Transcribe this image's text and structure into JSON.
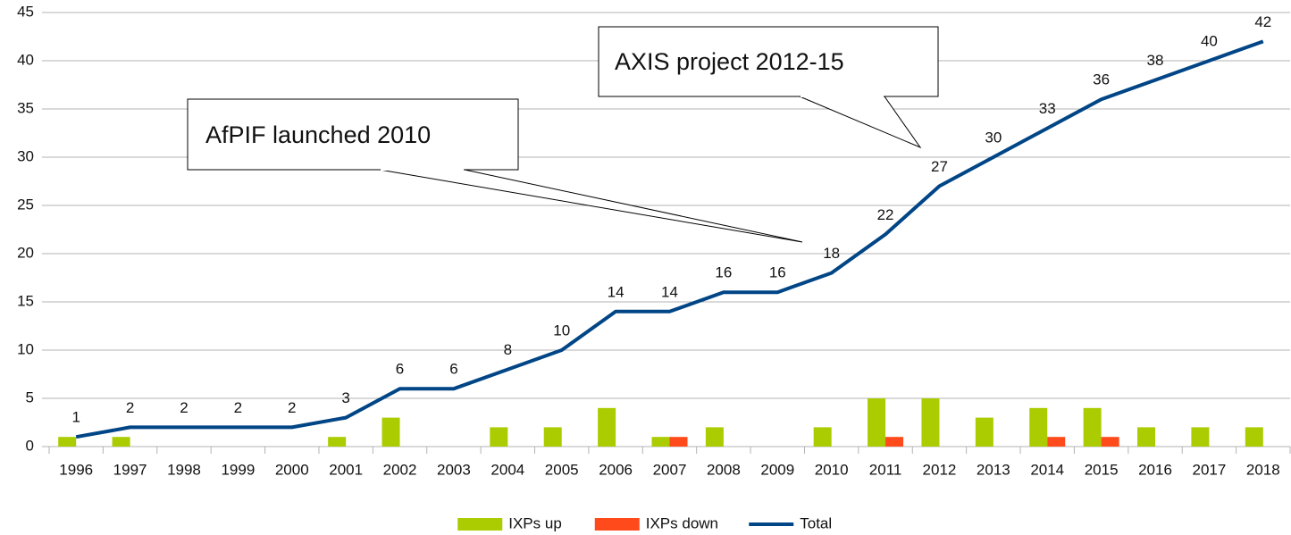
{
  "chart_data": {
    "type": "bar-line",
    "categories": [
      "1996",
      "1997",
      "1998",
      "1999",
      "2000",
      "2001",
      "2002",
      "2003",
      "2004",
      "2005",
      "2006",
      "2007",
      "2008",
      "2009",
      "2010",
      "2011",
      "2012",
      "2013",
      "2014",
      "2015",
      "2016",
      "2017",
      "2018"
    ],
    "series": [
      {
        "name": "IXPs up",
        "color": "#aacc00",
        "type": "bar",
        "values": [
          1,
          1,
          0,
          0,
          0,
          1,
          3,
          0,
          2,
          2,
          4,
          1,
          2,
          0,
          2,
          5,
          5,
          3,
          4,
          4,
          2,
          2,
          2
        ]
      },
      {
        "name": "IXPs down",
        "color": "#ff4a1c",
        "type": "bar",
        "values": [
          0,
          0,
          0,
          0,
          0,
          0,
          0,
          0,
          0,
          0,
          0,
          1,
          0,
          0,
          0,
          1,
          0,
          0,
          1,
          1,
          0,
          0,
          0
        ]
      },
      {
        "name": "Total",
        "color": "#004586",
        "type": "line",
        "values": [
          1,
          2,
          2,
          2,
          2,
          3,
          6,
          6,
          8,
          10,
          14,
          14,
          16,
          16,
          18,
          22,
          27,
          30,
          33,
          36,
          38,
          40,
          42
        ]
      }
    ],
    "ylim": [
      0,
      45
    ],
    "yticks": [
      0,
      5,
      10,
      15,
      20,
      25,
      30,
      35,
      40,
      45
    ],
    "grid": true,
    "legend": "bottom",
    "annotations": [
      "AfPIF launched 2010",
      "AXIS project 2012-15"
    ]
  }
}
